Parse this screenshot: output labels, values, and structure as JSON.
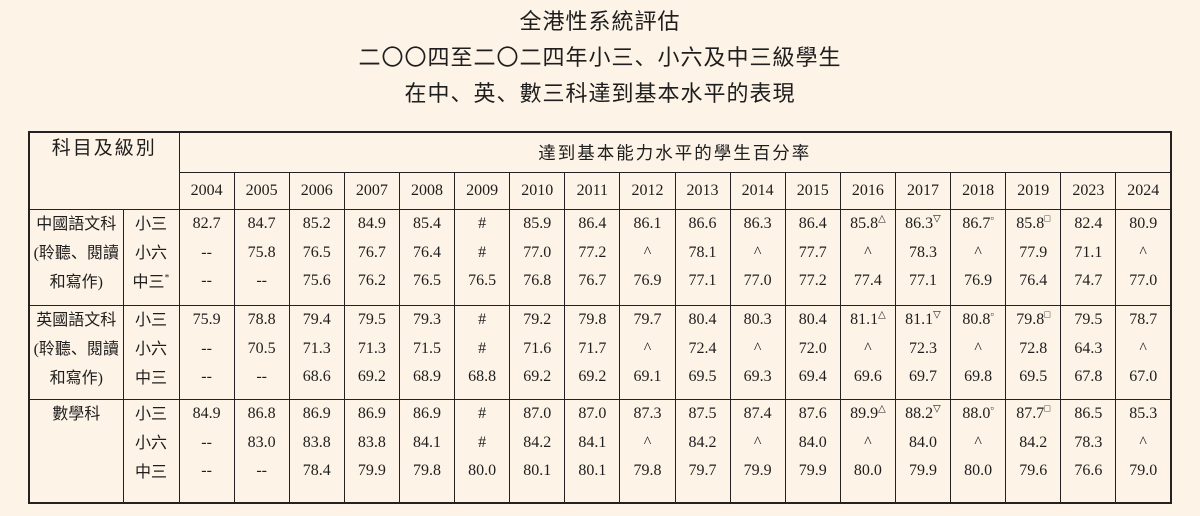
{
  "title": {
    "line1": "全港性系統評估",
    "line2": "二〇〇四至二〇二四年小三、小六及中三級學生",
    "line3": "在中、英、數三科達到基本水平的表現"
  },
  "colors": {
    "background": "#fdf3e7",
    "border": "#222222",
    "text": "#1e1e1e"
  },
  "table": {
    "corner_header": "科目及級別",
    "main_header": "達到基本能力水平的學生百分率",
    "years": [
      "2004",
      "2005",
      "2006",
      "2007",
      "2008",
      "2009",
      "2010",
      "2011",
      "2012",
      "2013",
      "2014",
      "2015",
      "2016",
      "2017",
      "2018",
      "2019",
      "2023",
      "2024"
    ],
    "blocks": [
      {
        "subject_lines": [
          "中國語文科",
          "(聆聽、閱讀",
          "和寫作)"
        ],
        "levels": [
          "小三",
          "小六",
          {
            "t": "中三",
            "s": "*"
          }
        ],
        "cells": [
          [
            "82.7",
            "--",
            "--"
          ],
          [
            "84.7",
            "75.8",
            "--"
          ],
          [
            "85.2",
            "76.5",
            "75.6"
          ],
          [
            "84.9",
            "76.7",
            "76.2"
          ],
          [
            "85.4",
            "76.4",
            "76.5"
          ],
          [
            "#",
            "#",
            "76.5"
          ],
          [
            "85.9",
            "77.0",
            "76.8"
          ],
          [
            "86.4",
            "77.2",
            "76.7"
          ],
          [
            "86.1",
            "^",
            "76.9"
          ],
          [
            "86.6",
            "78.1",
            "77.1"
          ],
          [
            "86.3",
            "^",
            "77.0"
          ],
          [
            "86.4",
            "77.7",
            "77.2"
          ],
          [
            {
              "t": "85.8",
              "s": "△"
            },
            "^",
            "77.4"
          ],
          [
            {
              "t": "86.3",
              "s": "▽"
            },
            "78.3",
            "77.1"
          ],
          [
            {
              "t": "86.7",
              "s": "▫"
            },
            "^",
            "76.9"
          ],
          [
            {
              "t": "85.8",
              "s": "□"
            },
            "77.9",
            "76.4"
          ],
          [
            "82.4",
            "71.1",
            "74.7"
          ],
          [
            "80.9",
            "^",
            "77.0"
          ]
        ]
      },
      {
        "subject_lines": [
          "英國語文科",
          "(聆聽、閱讀",
          "和寫作)"
        ],
        "levels": [
          "小三",
          "小六",
          "中三"
        ],
        "cells": [
          [
            "75.9",
            "--",
            "--"
          ],
          [
            "78.8",
            "70.5",
            "--"
          ],
          [
            "79.4",
            "71.3",
            "68.6"
          ],
          [
            "79.5",
            "71.3",
            "69.2"
          ],
          [
            "79.3",
            "71.5",
            "68.9"
          ],
          [
            "#",
            "#",
            "68.8"
          ],
          [
            "79.2",
            "71.6",
            "69.2"
          ],
          [
            "79.8",
            "71.7",
            "69.2"
          ],
          [
            "79.7",
            "^",
            "69.1"
          ],
          [
            "80.4",
            "72.4",
            "69.5"
          ],
          [
            "80.3",
            "^",
            "69.3"
          ],
          [
            "80.4",
            "72.0",
            "69.4"
          ],
          [
            {
              "t": "81.1",
              "s": "△"
            },
            "^",
            "69.6"
          ],
          [
            {
              "t": "81.1",
              "s": "▽"
            },
            "72.3",
            "69.7"
          ],
          [
            {
              "t": "80.8",
              "s": "▫"
            },
            "^",
            "69.8"
          ],
          [
            {
              "t": "79.8",
              "s": "□"
            },
            "72.8",
            "69.5"
          ],
          [
            "79.5",
            "64.3",
            "67.8"
          ],
          [
            "78.7",
            "^",
            "67.0"
          ]
        ]
      },
      {
        "subject_lines": [
          "數學科"
        ],
        "levels": [
          "小三",
          "小六",
          "中三"
        ],
        "cells": [
          [
            "84.9",
            "--",
            "--"
          ],
          [
            "86.8",
            "83.0",
            "--"
          ],
          [
            "86.9",
            "83.8",
            "78.4"
          ],
          [
            "86.9",
            "83.8",
            "79.9"
          ],
          [
            "86.9",
            "84.1",
            "79.8"
          ],
          [
            "#",
            "#",
            "80.0"
          ],
          [
            "87.0",
            "84.2",
            "80.1"
          ],
          [
            "87.0",
            "84.1",
            "80.1"
          ],
          [
            "87.3",
            "^",
            "79.8"
          ],
          [
            "87.5",
            "84.2",
            "79.7"
          ],
          [
            "87.4",
            "^",
            "79.9"
          ],
          [
            "87.6",
            "84.0",
            "79.9"
          ],
          [
            {
              "t": "89.9",
              "s": "△"
            },
            "^",
            "80.0"
          ],
          [
            {
              "t": "88.2",
              "s": "▽"
            },
            "84.0",
            "79.9"
          ],
          [
            {
              "t": "88.0",
              "s": "▫"
            },
            "^",
            "80.0"
          ],
          [
            {
              "t": "87.7",
              "s": "□"
            },
            "84.2",
            "79.6"
          ],
          [
            "86.5",
            "78.3",
            "76.6"
          ],
          [
            "85.3",
            "^",
            "79.0"
          ]
        ]
      }
    ]
  }
}
